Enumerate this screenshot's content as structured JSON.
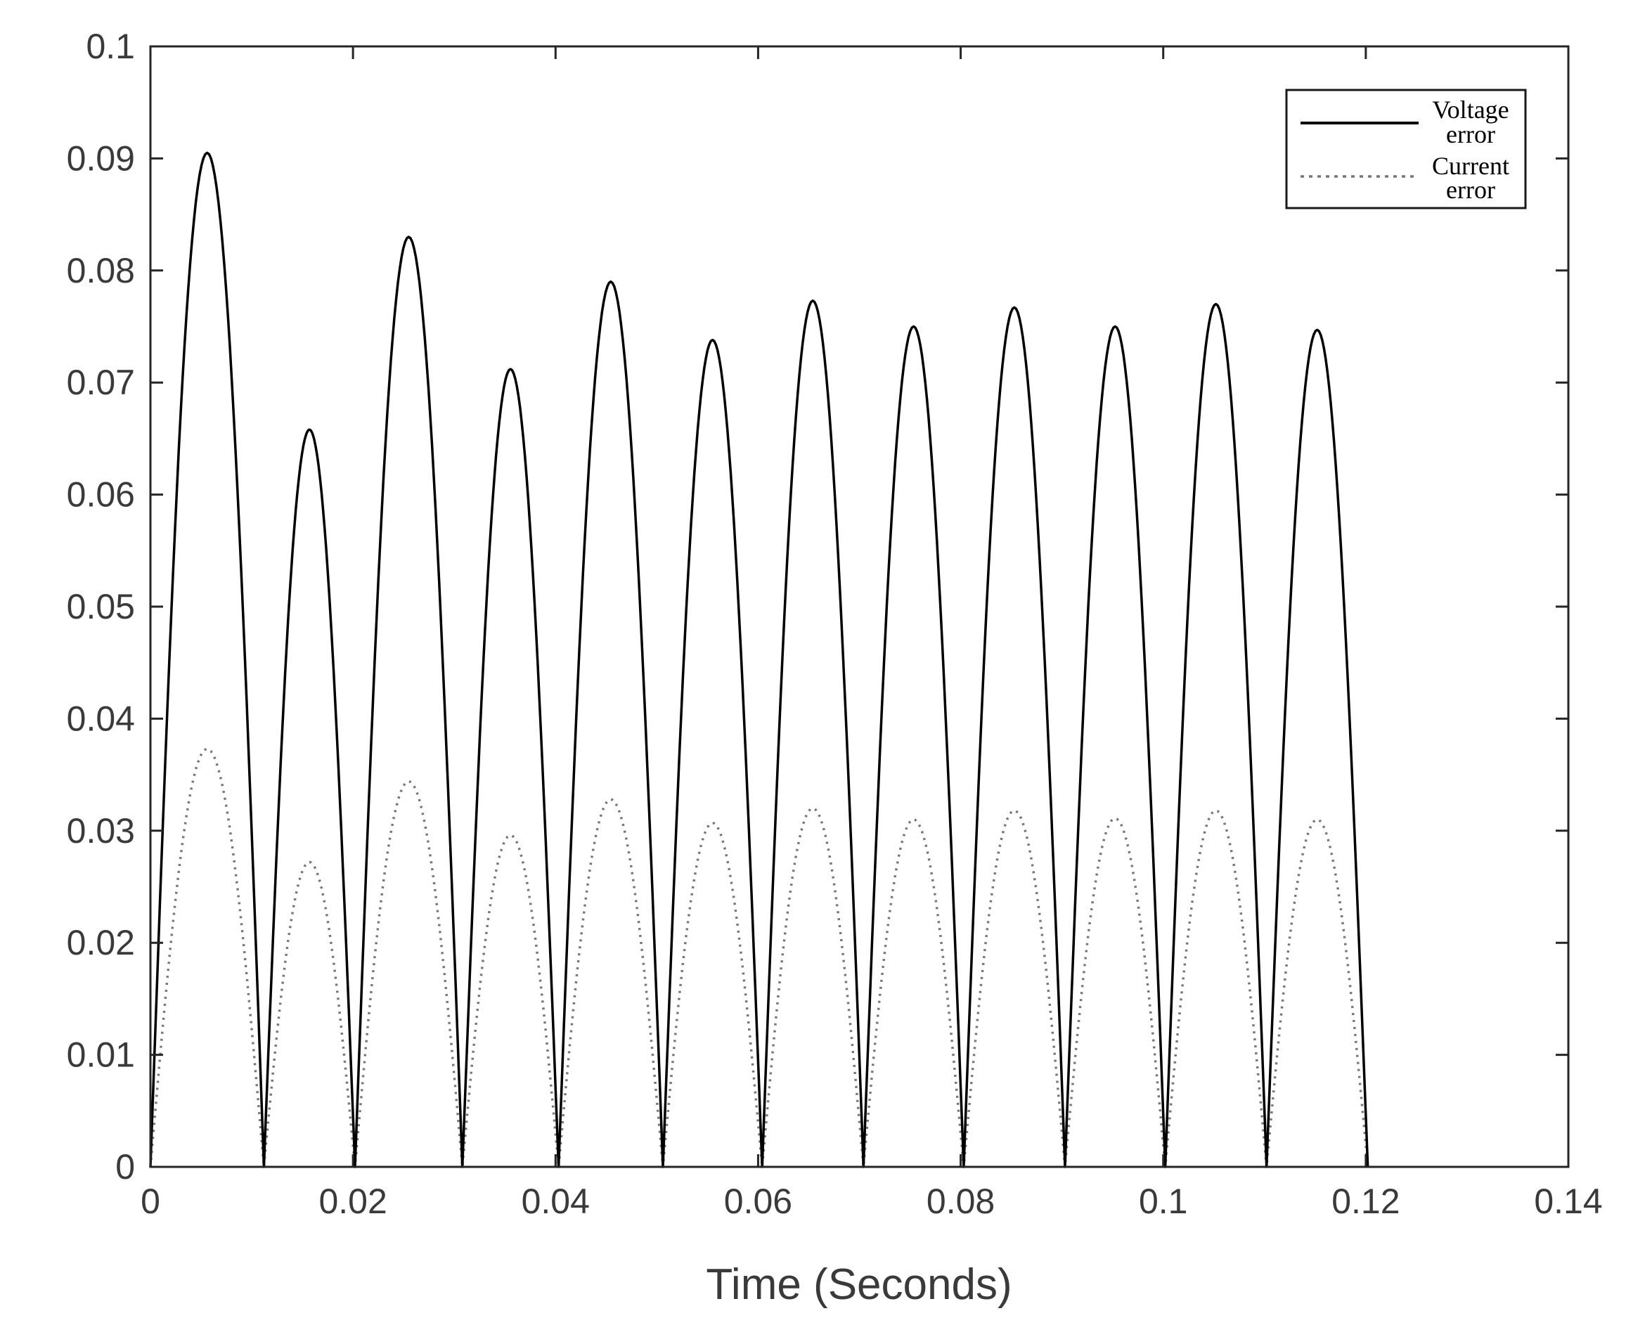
{
  "chart_data": {
    "type": "line",
    "title": "",
    "xlabel": "Time (Seconds)",
    "ylabel": "",
    "xlim": [
      0,
      0.14
    ],
    "ylim": [
      0,
      0.1
    ],
    "xticks": [
      0,
      0.02,
      0.04,
      0.06,
      0.08,
      0.1,
      0.12,
      0.14
    ],
    "xtick_labels": [
      "0",
      "0.02",
      "0.04",
      "0.06",
      "0.08",
      "0.1",
      "0.12",
      "0.14"
    ],
    "yticks": [
      0,
      0.01,
      0.02,
      0.03,
      0.04,
      0.05,
      0.06,
      0.07,
      0.08,
      0.09,
      0.1
    ],
    "ytick_labels": [
      "0",
      "0.01",
      "0.02",
      "0.03",
      "0.04",
      "0.05",
      "0.06",
      "0.07",
      "0.08",
      "0.09",
      "0.1"
    ],
    "grid": false,
    "legend_position": "top-right",
    "x_end": 0.125,
    "zero_crossings": [
      0,
      0.0112,
      0.0202,
      0.0308,
      0.0403,
      0.0506,
      0.0604,
      0.0704,
      0.0803,
      0.0903,
      0.1002,
      0.1102,
      0.1202
    ],
    "series": [
      {
        "name": "Voltage error",
        "style": "solid",
        "color": "#000000",
        "peaks": [
          {
            "x": 0.0057,
            "y": 0.0905
          },
          {
            "x": 0.0157,
            "y": 0.0658
          },
          {
            "x": 0.0255,
            "y": 0.083
          },
          {
            "x": 0.0355,
            "y": 0.0712
          },
          {
            "x": 0.0455,
            "y": 0.079
          },
          {
            "x": 0.0555,
            "y": 0.0738
          },
          {
            "x": 0.0655,
            "y": 0.0773
          },
          {
            "x": 0.0755,
            "y": 0.075
          },
          {
            "x": 0.0855,
            "y": 0.0767
          },
          {
            "x": 0.0955,
            "y": 0.075
          },
          {
            "x": 0.1055,
            "y": 0.077
          },
          {
            "x": 0.1155,
            "y": 0.0747
          }
        ],
        "end_value": 0.075
      },
      {
        "name": "Current error",
        "style": "dotted",
        "color": "#777777",
        "peaks": [
          {
            "x": 0.0057,
            "y": 0.0373
          },
          {
            "x": 0.0157,
            "y": 0.0272
          },
          {
            "x": 0.0255,
            "y": 0.0344
          },
          {
            "x": 0.0355,
            "y": 0.0296
          },
          {
            "x": 0.0455,
            "y": 0.0328
          },
          {
            "x": 0.0555,
            "y": 0.0307
          },
          {
            "x": 0.0655,
            "y": 0.032
          },
          {
            "x": 0.0755,
            "y": 0.031
          },
          {
            "x": 0.0855,
            "y": 0.0318
          },
          {
            "x": 0.0955,
            "y": 0.0311
          },
          {
            "x": 0.1055,
            "y": 0.0318
          },
          {
            "x": 0.1155,
            "y": 0.031
          }
        ],
        "end_value": 0.031
      }
    ],
    "legend": {
      "voltage_line1": "Voltage",
      "voltage_line2": "error",
      "current_line1": "Current",
      "current_line2": "error"
    }
  }
}
